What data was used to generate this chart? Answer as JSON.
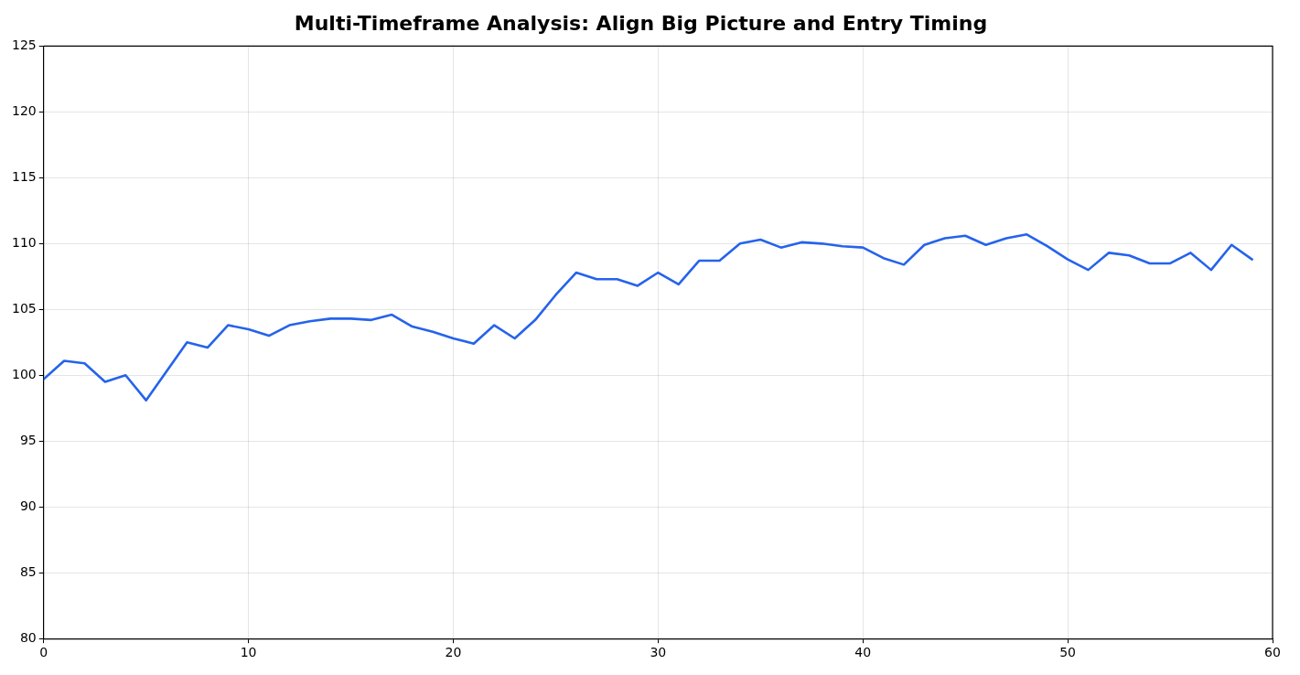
{
  "chart_data": {
    "type": "line",
    "title": "Multi-Timeframe Analysis: Align Big Picture and Entry Timing",
    "x": [
      0,
      1,
      2,
      3,
      4,
      5,
      6,
      7,
      8,
      9,
      10,
      11,
      12,
      13,
      14,
      15,
      16,
      17,
      18,
      19,
      20,
      21,
      22,
      23,
      24,
      25,
      26,
      27,
      28,
      29,
      30,
      31,
      32,
      33,
      34,
      35,
      36,
      37,
      38,
      39,
      40,
      41,
      42,
      43,
      44,
      45,
      46,
      47,
      48,
      49,
      50,
      51,
      52,
      53,
      54,
      55,
      56,
      57,
      58,
      59
    ],
    "series": [
      {
        "color": "#2563eb",
        "values": [
          99.7,
          101.1,
          100.9,
          99.5,
          100.0,
          98.1,
          100.3,
          102.5,
          102.1,
          103.8,
          103.5,
          103.0,
          103.8,
          104.1,
          104.3,
          104.3,
          104.2,
          104.6,
          103.7,
          103.3,
          102.8,
          102.4,
          103.8,
          102.8,
          104.2,
          106.1,
          107.8,
          107.3,
          107.3,
          106.8,
          107.8,
          106.9,
          108.7,
          108.7,
          110.0,
          110.3,
          109.7,
          110.1,
          110.0,
          109.8,
          109.7,
          108.9,
          108.4,
          109.9,
          110.4,
          110.6,
          109.9,
          110.4,
          110.7,
          109.8,
          108.8,
          108.0,
          109.3,
          109.1,
          108.5,
          108.5,
          109.3,
          108.0,
          109.9,
          108.8
        ]
      }
    ],
    "xlim": [
      0,
      60
    ],
    "xticks": [
      0,
      10,
      20,
      30,
      40,
      50,
      60
    ],
    "ylim": [
      80,
      125
    ],
    "yticks": [
      80,
      85,
      90,
      95,
      100,
      105,
      110,
      115,
      120,
      125
    ],
    "grid": true,
    "marker": "none",
    "line_style": "solid"
  }
}
